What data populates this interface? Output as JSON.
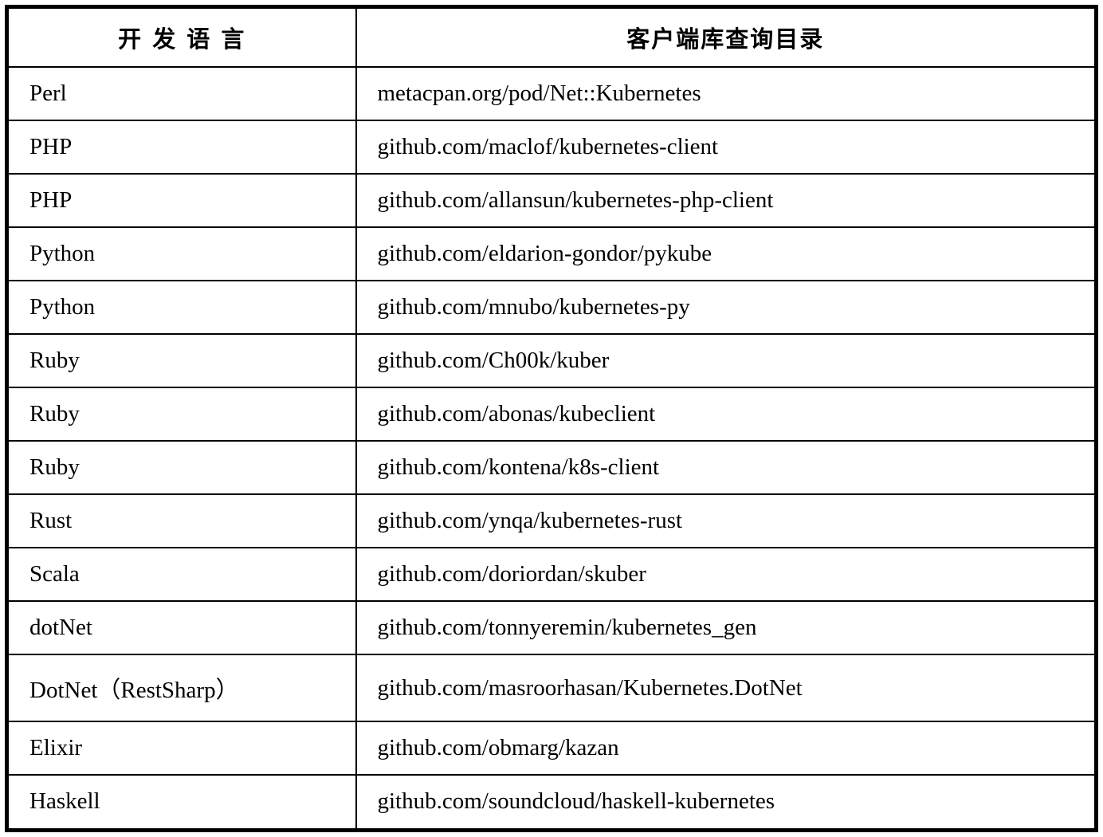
{
  "table": {
    "headers": [
      {
        "label": "开 发 语 言"
      },
      {
        "label": "客户端库查询目录"
      }
    ],
    "rows": [
      {
        "language": "Perl",
        "directory": "metacpan.org/pod/Net::Kubernetes"
      },
      {
        "language": "PHP",
        "directory": "github.com/maclof/kubernetes-client"
      },
      {
        "language": "PHP",
        "directory": "github.com/allansun/kubernetes-php-client"
      },
      {
        "language": "Python",
        "directory": "github.com/eldarion-gondor/pykube"
      },
      {
        "language": "Python",
        "directory": "github.com/mnubo/kubernetes-py"
      },
      {
        "language": "Ruby",
        "directory": "github.com/Ch00k/kuber"
      },
      {
        "language": "Ruby",
        "directory": "github.com/abonas/kubeclient"
      },
      {
        "language": "Ruby",
        "directory": "github.com/kontena/k8s-client"
      },
      {
        "language": "Rust",
        "directory": "github.com/ynqa/kubernetes-rust"
      },
      {
        "language": "Scala",
        "directory": "github.com/doriordan/skuber"
      },
      {
        "language": "dotNet",
        "directory": "github.com/tonnyeremin/kubernetes_gen"
      },
      {
        "language": "DotNet（RestSharp）",
        "directory": "github.com/masroorhasan/Kubernetes.DotNet"
      },
      {
        "language": "Elixir",
        "directory": "github.com/obmarg/kazan"
      },
      {
        "language": "Haskell",
        "directory": "github.com/soundcloud/haskell-kubernetes"
      }
    ],
    "colors": {
      "border": "#000000",
      "text": "#000000",
      "background": "#ffffff"
    }
  }
}
